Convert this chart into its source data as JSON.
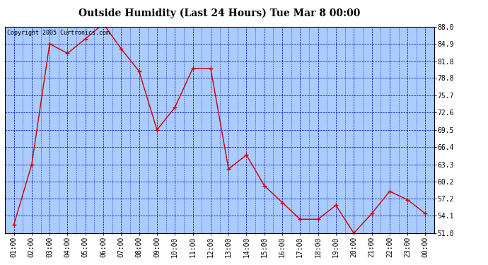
{
  "title": "Outside Humidity (Last 24 Hours) Tue Mar 8 00:00",
  "copyright": "Copyright 2005 Curtronics.com",
  "x_labels": [
    "01:00",
    "02:00",
    "03:00",
    "04:00",
    "05:00",
    "06:00",
    "07:00",
    "08:00",
    "09:00",
    "10:00",
    "11:00",
    "12:00",
    "13:00",
    "14:00",
    "15:00",
    "16:00",
    "17:00",
    "18:00",
    "19:00",
    "20:00",
    "21:00",
    "22:00",
    "23:00",
    "00:00"
  ],
  "data_points": [
    [
      1,
      52.5
    ],
    [
      2,
      63.3
    ],
    [
      3,
      84.9
    ],
    [
      4,
      83.2
    ],
    [
      5,
      85.8
    ],
    [
      6,
      88.5
    ],
    [
      7,
      84.0
    ],
    [
      8,
      80.0
    ],
    [
      9,
      69.5
    ],
    [
      10,
      73.5
    ],
    [
      11,
      80.5
    ],
    [
      12,
      80.5
    ],
    [
      13,
      62.5
    ],
    [
      14,
      65.0
    ],
    [
      15,
      59.5
    ],
    [
      16,
      56.5
    ],
    [
      17,
      53.5
    ],
    [
      18,
      53.5
    ],
    [
      19,
      56.0
    ],
    [
      20,
      51.0
    ],
    [
      21,
      54.5
    ],
    [
      22,
      58.5
    ],
    [
      23,
      57.0
    ],
    [
      24,
      54.5
    ]
  ],
  "line_color": "#cc0000",
  "marker_color": "#cc0000",
  "plot_bg_color": "#aaccff",
  "fig_bg_color": "#ffffff",
  "grid_color": "#0000bb",
  "ylim": [
    51.0,
    88.0
  ],
  "yticks": [
    51.0,
    54.1,
    57.2,
    60.2,
    63.3,
    66.4,
    69.5,
    72.6,
    75.7,
    78.8,
    81.8,
    84.9,
    88.0
  ],
  "ytick_labels": [
    "51.0",
    "54.1",
    "57.2",
    "60.2",
    "63.3",
    "66.4",
    "69.5",
    "72.6",
    "75.7",
    "78.8",
    "81.8",
    "84.9",
    "88.0"
  ],
  "title_fontsize": 10,
  "copyright_fontsize": 6,
  "tick_fontsize": 7
}
